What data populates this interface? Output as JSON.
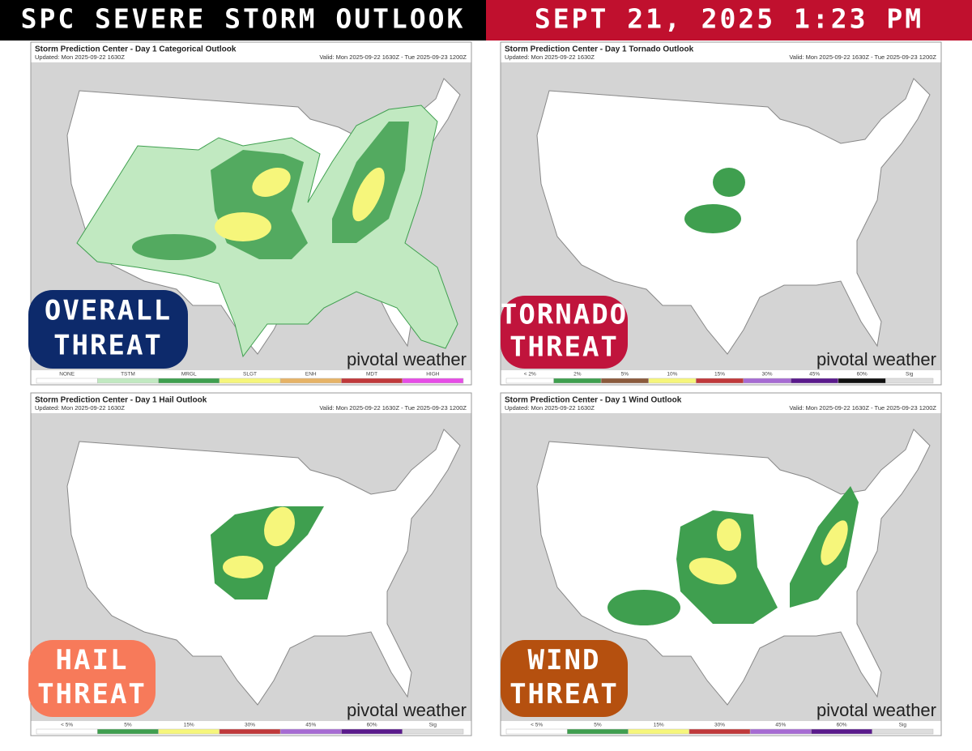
{
  "header": {
    "left": "SPC SEVERE STORM OUTLOOK",
    "right": "SEPT 21, 2025 1:23 PM"
  },
  "panels": [
    {
      "title": "Storm Prediction Center - Day 1 Categorical Outlook",
      "updated": "Updated: Mon 2025-09-22 1630Z",
      "valid": "Valid: Mon 2025-09-22 1630Z - Tue 2025-09-23 1200Z",
      "badge": [
        "OVERALL",
        "THREAT"
      ],
      "watermark": "pivotal weather",
      "legend": [
        {
          "label": "NONE",
          "color": "#ffffff"
        },
        {
          "label": "TSTM",
          "color": "#c1e9c1"
        },
        {
          "label": "MRGL",
          "color": "#3f9f4f"
        },
        {
          "label": "SLGT",
          "color": "#f6f67b"
        },
        {
          "label": "ENH",
          "color": "#e6b366"
        },
        {
          "label": "MDT",
          "color": "#c0393b"
        },
        {
          "label": "HIGH",
          "color": "#e64de6"
        }
      ]
    },
    {
      "title": "Storm Prediction Center - Day 1 Tornado Outlook",
      "updated": "Updated: Mon 2025-09-22 1630Z",
      "valid": "Valid: Mon 2025-09-22 1630Z - Tue 2025-09-23 1200Z",
      "badge": [
        "TORNADO",
        "THREAT"
      ],
      "watermark": "pivotal weather",
      "legend": [
        {
          "label": "< 2%",
          "color": "#ffffff"
        },
        {
          "label": "2%",
          "color": "#3f9f4f"
        },
        {
          "label": "5%",
          "color": "#8b5a3c"
        },
        {
          "label": "10%",
          "color": "#f6f67b"
        },
        {
          "label": "15%",
          "color": "#c0393b"
        },
        {
          "label": "30%",
          "color": "#a66bd3"
        },
        {
          "label": "45%",
          "color": "#5a1a8c"
        },
        {
          "label": "60%",
          "color": "#111111"
        },
        {
          "label": "Sig",
          "color": "#dddddd"
        }
      ]
    },
    {
      "title": "Storm Prediction Center - Day 1 Hail Outlook",
      "updated": "Updated: Mon 2025-09-22 1630Z",
      "valid": "Valid: Mon 2025-09-22 1630Z - Tue 2025-09-23 1200Z",
      "badge": [
        "HAIL",
        "THREAT"
      ],
      "watermark": "pivotal weather",
      "legend": [
        {
          "label": "< 5%",
          "color": "#ffffff"
        },
        {
          "label": "5%",
          "color": "#3f9f4f"
        },
        {
          "label": "15%",
          "color": "#f6f67b"
        },
        {
          "label": "30%",
          "color": "#c0393b"
        },
        {
          "label": "45%",
          "color": "#a66bd3"
        },
        {
          "label": "60%",
          "color": "#5a1a8c"
        },
        {
          "label": "Sig",
          "color": "#dddddd"
        }
      ]
    },
    {
      "title": "Storm Prediction Center - Day 1 Wind Outlook",
      "updated": "Updated: Mon 2025-09-22 1630Z",
      "valid": "Valid: Mon 2025-09-22 1630Z - Tue 2025-09-23 1200Z",
      "badge": [
        "WIND",
        "THREAT"
      ],
      "watermark": "pivotal weather",
      "legend": [
        {
          "label": "< 5%",
          "color": "#ffffff"
        },
        {
          "label": "5%",
          "color": "#3f9f4f"
        },
        {
          "label": "15%",
          "color": "#f6f67b"
        },
        {
          "label": "30%",
          "color": "#c0393b"
        },
        {
          "label": "45%",
          "color": "#a66bd3"
        },
        {
          "label": "60%",
          "color": "#5a1a8c"
        },
        {
          "label": "Sig",
          "color": "#dddddd"
        }
      ]
    }
  ]
}
